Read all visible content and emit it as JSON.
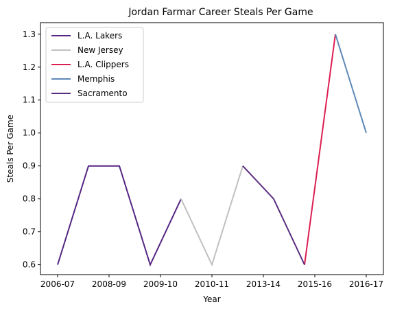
{
  "chart_data": {
    "type": "line",
    "title": "Jordan Farmar Career Steals Per Game",
    "xlabel": "Year",
    "ylabel": "Steals Per Game",
    "x_tick_labels": [
      "2006-07",
      "2008-09",
      "2009-10",
      "2010-11",
      "2013-14",
      "2015-16",
      "2016-17"
    ],
    "ylim": [
      0.57,
      1.335
    ],
    "yticks": [
      0.6,
      0.7,
      0.8,
      0.9,
      1.0,
      1.1,
      1.2,
      1.3
    ],
    "ytick_labels": [
      "0.6",
      "0.7",
      "0.8",
      "0.9",
      "1.0",
      "1.1",
      "1.2",
      "1.3"
    ],
    "grid": false,
    "legend_position": "upper-left",
    "series": [
      {
        "name": "L.A. Lakers",
        "color": "#552583",
        "points": [
          [
            0,
            0.6
          ],
          [
            1,
            0.9
          ],
          [
            2,
            0.9
          ],
          [
            3,
            0.6
          ],
          [
            4,
            0.8
          ]
        ]
      },
      {
        "name": "New Jersey",
        "color": "#C0C0C0",
        "points": [
          [
            4,
            0.8
          ],
          [
            5,
            0.6
          ],
          [
            6,
            0.9
          ]
        ]
      },
      {
        "name": "L.A. Clippers",
        "color": "#DC1E50",
        "points": [
          [
            8,
            0.6
          ],
          [
            9,
            1.3
          ]
        ]
      },
      {
        "name": "Memphis",
        "color": "#5D88B8",
        "points": [
          [
            9,
            1.3
          ],
          [
            10,
            1.0
          ]
        ]
      },
      {
        "name": "Sacramento",
        "color": "#5A2D81",
        "points": [
          [
            6,
            0.9
          ],
          [
            7,
            0.8
          ],
          [
            8,
            0.6
          ]
        ]
      }
    ]
  }
}
